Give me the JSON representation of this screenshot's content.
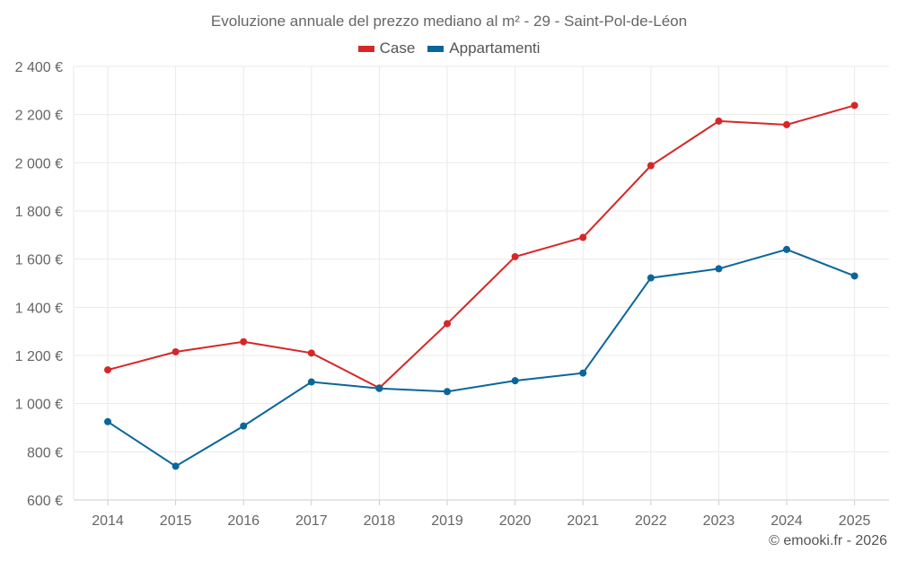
{
  "title": "Evoluzione annuale del prezzo mediano al m² - 29 - Saint-Pol-de-Léon",
  "credit": "© emooki.fr - 2026",
  "colors": {
    "case": "#d62728",
    "appartamenti": "#0a6699",
    "grid": "#eaeaea",
    "axis": "#cccccc"
  },
  "chart_data": {
    "type": "line",
    "title": "Evoluzione annuale del prezzo mediano al m² - 29 - Saint-Pol-de-Léon",
    "xlabel": "",
    "ylabel": "",
    "categories": [
      "2014",
      "2015",
      "2016",
      "2017",
      "2018",
      "2019",
      "2020",
      "2021",
      "2022",
      "2023",
      "2024",
      "2025"
    ],
    "ylim": [
      600,
      2400
    ],
    "yticks": [
      600,
      800,
      1000,
      1200,
      1400,
      1600,
      1800,
      2000,
      2200,
      2400
    ],
    "ytick_labels": [
      "600 €",
      "800 €",
      "1 000 €",
      "1 200 €",
      "1 400 €",
      "1 600 €",
      "1 800 €",
      "2 000 €",
      "2 200 €",
      "2 400 €"
    ],
    "grid": true,
    "legend_position": "top-center",
    "series": [
      {
        "name": "Case",
        "color": "#d62728",
        "values": [
          1140,
          1215,
          1257,
          1210,
          1065,
          1332,
          1610,
          1690,
          1988,
          2173,
          2158,
          2238
        ]
      },
      {
        "name": "Appartamenti",
        "color": "#0a6699",
        "values": [
          925,
          740,
          907,
          1090,
          1063,
          1050,
          1095,
          1127,
          1522,
          1560,
          1640,
          1530
        ]
      }
    ]
  }
}
